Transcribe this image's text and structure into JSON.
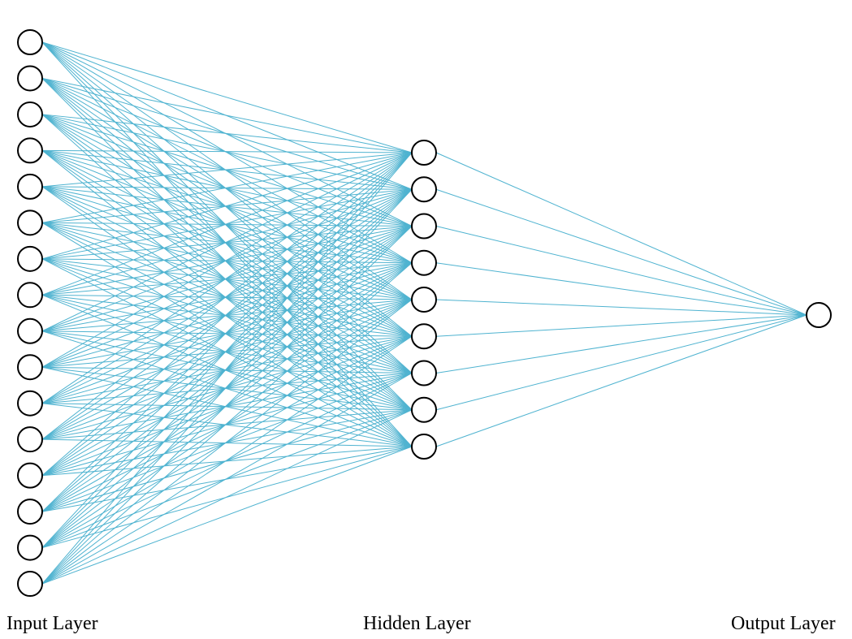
{
  "diagram": {
    "type": "fully-connected-neural-network",
    "layers": [
      {
        "name": "input",
        "label": "Input Layer",
        "node_count": 16
      },
      {
        "name": "hidden",
        "label": "Hidden Layer",
        "node_count": 9
      },
      {
        "name": "output",
        "label": "Output Layer",
        "node_count": 1
      }
    ],
    "connections": "all-to-all between adjacent layers",
    "colors": {
      "edge": "#4fb3d0",
      "node_stroke": "#000000",
      "node_fill": "#ffffff",
      "background": "#ffffff"
    }
  }
}
